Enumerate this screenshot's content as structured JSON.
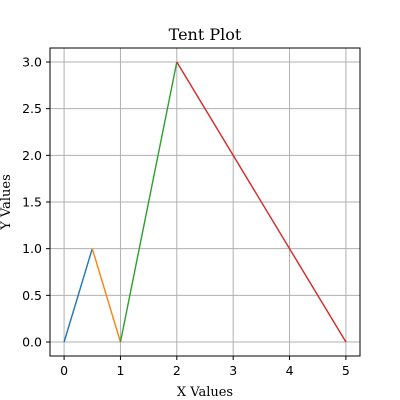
{
  "chart_data": {
    "type": "line",
    "title": "Tent Plot",
    "xlabel": "X Values",
    "ylabel": "Y Values",
    "xlim": [
      -0.25,
      5.25
    ],
    "ylim": [
      -0.15,
      3.15
    ],
    "xticks": [
      0,
      1,
      2,
      3,
      4,
      5
    ],
    "xtick_labels": [
      "0",
      "1",
      "2",
      "3",
      "4",
      "5"
    ],
    "yticks": [
      0.0,
      0.5,
      1.0,
      1.5,
      2.0,
      2.5,
      3.0
    ],
    "ytick_labels": [
      "0.0",
      "0.5",
      "1.0",
      "1.5",
      "2.0",
      "2.5",
      "3.0"
    ],
    "grid": true,
    "series": [
      {
        "x": [
          0,
          0.5
        ],
        "y": [
          0,
          1
        ],
        "color": "#1f77b4"
      },
      {
        "x": [
          0.5,
          1
        ],
        "y": [
          1,
          0
        ],
        "color": "#ff7f0e"
      },
      {
        "x": [
          1,
          2
        ],
        "y": [
          0,
          3
        ],
        "color": "#2ca02c"
      },
      {
        "x": [
          2,
          5
        ],
        "y": [
          3,
          0
        ],
        "color": "#d62728"
      }
    ]
  }
}
